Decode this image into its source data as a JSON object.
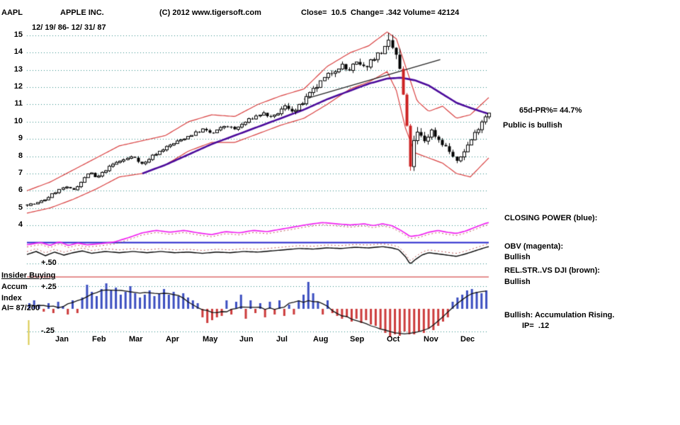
{
  "header": {
    "symbol": "AAPL",
    "company": "APPLE INC.",
    "copyright": "(C) 2012 www.tigersoft.com",
    "stats": "Close=  10.5  Change= .342 Volume= 42124",
    "date_range": "12/ 19/ 86- 12/ 31/ 87"
  },
  "right_panel": {
    "pr": "65d-PR%= 44.7%",
    "public": "Public is bullish",
    "closing_power_label": "CLOSING POWER (blue):",
    "obv_label": "OBV (magenta):",
    "obv_status": "Bullish",
    "relstr_label": "REL.STR..VS DJI (brown):",
    "relstr_status": "Bullish",
    "accum_note": "Bullish: Accumulation Rising.",
    "ip": "IP=  .12"
  },
  "left_labels": {
    "plus50": "+.50",
    "insider": "Insider Buying",
    "accum": "Accum",
    "plus25": "+.25",
    "index": "Index",
    "ai": "AI= 87/200",
    "minus25": "-.25"
  },
  "axis": {
    "price_ticks": [
      15,
      14,
      13,
      12,
      11,
      10,
      9,
      8,
      7,
      6,
      5,
      4
    ],
    "months": [
      "Jan",
      "Feb",
      "Mar",
      "Apr",
      "May",
      "Jun",
      "Jul",
      "Aug",
      "Sep",
      "Oct",
      "Nov",
      "Dec"
    ]
  },
  "chart_data": {
    "type": "candlestick",
    "title": "AAPL daily 12/19/86 - 12/31/87 with trading bands, 65-day MA, OBV, Closing Power, Rel.Str. vs DJI and Accumulation Index",
    "price_axis_range": [
      4,
      15
    ],
    "final_close": 10.5,
    "num_candles": 130,
    "price_anchors": [
      [
        0,
        5.2
      ],
      [
        0.02,
        5.25
      ],
      [
        0.04,
        5.5
      ],
      [
        0.06,
        5.9
      ],
      [
        0.08,
        6.2
      ],
      [
        0.1,
        6.05
      ],
      [
        0.12,
        6.6
      ],
      [
        0.135,
        7.1
      ],
      [
        0.15,
        6.7
      ],
      [
        0.17,
        7.2
      ],
      [
        0.19,
        7.6
      ],
      [
        0.21,
        7.8
      ],
      [
        0.23,
        8.0
      ],
      [
        0.25,
        7.5
      ],
      [
        0.27,
        8.0
      ],
      [
        0.3,
        8.5
      ],
      [
        0.33,
        8.9
      ],
      [
        0.36,
        9.3
      ],
      [
        0.38,
        9.55
      ],
      [
        0.4,
        9.3
      ],
      [
        0.43,
        9.8
      ],
      [
        0.45,
        9.55
      ],
      [
        0.48,
        10.1
      ],
      [
        0.51,
        10.5
      ],
      [
        0.53,
        10.2
      ],
      [
        0.56,
        10.9
      ],
      [
        0.58,
        10.6
      ],
      [
        0.6,
        11.2
      ],
      [
        0.62,
        11.8
      ],
      [
        0.64,
        12.4
      ],
      [
        0.66,
        12.9
      ],
      [
        0.68,
        13.3
      ],
      [
        0.695,
        12.9
      ],
      [
        0.71,
        13.4
      ],
      [
        0.73,
        13.1
      ],
      [
        0.75,
        13.7
      ],
      [
        0.77,
        14.1
      ],
      [
        0.785,
        14.5
      ],
      [
        0.8,
        13.8
      ],
      [
        0.81,
        12.4
      ],
      [
        0.82,
        10.2
      ],
      [
        0.828,
        7.2
      ],
      [
        0.835,
        8.6
      ],
      [
        0.845,
        9.3
      ],
      [
        0.86,
        8.9
      ],
      [
        0.875,
        9.5
      ],
      [
        0.89,
        9.0
      ],
      [
        0.905,
        8.6
      ],
      [
        0.92,
        8.1
      ],
      [
        0.93,
        7.6
      ],
      [
        0.945,
        8.3
      ],
      [
        0.96,
        8.9
      ],
      [
        0.975,
        9.6
      ],
      [
        0.99,
        10.3
      ],
      [
        1,
        10.5
      ]
    ],
    "ma_anchors": [
      [
        0.25,
        7.0
      ],
      [
        0.3,
        7.5
      ],
      [
        0.35,
        8.1
      ],
      [
        0.4,
        8.7
      ],
      [
        0.45,
        9.2
      ],
      [
        0.5,
        9.7
      ],
      [
        0.55,
        10.2
      ],
      [
        0.6,
        10.7
      ],
      [
        0.65,
        11.3
      ],
      [
        0.7,
        11.8
      ],
      [
        0.74,
        12.2
      ],
      [
        0.78,
        12.5
      ],
      [
        0.81,
        12.55
      ],
      [
        0.84,
        12.4
      ],
      [
        0.87,
        12.1
      ],
      [
        0.9,
        11.6
      ],
      [
        0.93,
        11.1
      ],
      [
        0.96,
        10.8
      ],
      [
        1,
        10.45
      ]
    ],
    "upper_band_anchors": [
      [
        0,
        6.0
      ],
      [
        0.05,
        6.5
      ],
      [
        0.1,
        7.2
      ],
      [
        0.15,
        7.9
      ],
      [
        0.2,
        8.6
      ],
      [
        0.25,
        8.9
      ],
      [
        0.3,
        9.2
      ],
      [
        0.35,
        10.0
      ],
      [
        0.4,
        10.4
      ],
      [
        0.45,
        10.3
      ],
      [
        0.5,
        11.0
      ],
      [
        0.55,
        11.5
      ],
      [
        0.6,
        11.9
      ],
      [
        0.65,
        13.2
      ],
      [
        0.7,
        14.0
      ],
      [
        0.74,
        14.4
      ],
      [
        0.78,
        15.2
      ],
      [
        0.8,
        14.8
      ],
      [
        0.82,
        13.2
      ],
      [
        0.845,
        11.2
      ],
      [
        0.87,
        10.6
      ],
      [
        0.9,
        10.9
      ],
      [
        0.93,
        10.2
      ],
      [
        0.96,
        10.4
      ],
      [
        1,
        11.4
      ]
    ],
    "lower_band_anchors": [
      [
        0,
        4.7
      ],
      [
        0.05,
        5.0
      ],
      [
        0.1,
        5.5
      ],
      [
        0.15,
        6.1
      ],
      [
        0.2,
        6.8
      ],
      [
        0.25,
        7.0
      ],
      [
        0.3,
        7.5
      ],
      [
        0.35,
        8.3
      ],
      [
        0.4,
        8.8
      ],
      [
        0.45,
        8.8
      ],
      [
        0.5,
        9.3
      ],
      [
        0.55,
        9.8
      ],
      [
        0.6,
        10.2
      ],
      [
        0.65,
        11.0
      ],
      [
        0.7,
        11.9
      ],
      [
        0.74,
        12.3
      ],
      [
        0.78,
        12.9
      ],
      [
        0.8,
        11.8
      ],
      [
        0.82,
        9.6
      ],
      [
        0.84,
        8.2
      ],
      [
        0.87,
        7.9
      ],
      [
        0.9,
        7.6
      ],
      [
        0.93,
        7.0
      ],
      [
        0.96,
        6.8
      ],
      [
        1,
        7.9
      ]
    ],
    "trendline": [
      [
        0.6,
        11.3
      ],
      [
        0.895,
        13.6
      ]
    ],
    "obv_anchors": [
      [
        0,
        0.58
      ],
      [
        0.03,
        0.62
      ],
      [
        0.05,
        0.57
      ],
      [
        0.07,
        0.63
      ],
      [
        0.09,
        0.57
      ],
      [
        0.11,
        0.61
      ],
      [
        0.13,
        0.58
      ],
      [
        0.16,
        0.6
      ],
      [
        0.19,
        0.63
      ],
      [
        0.22,
        0.7
      ],
      [
        0.25,
        0.78
      ],
      [
        0.28,
        0.82
      ],
      [
        0.31,
        0.79
      ],
      [
        0.34,
        0.82
      ],
      [
        0.37,
        0.78
      ],
      [
        0.4,
        0.75
      ],
      [
        0.43,
        0.8
      ],
      [
        0.46,
        0.78
      ],
      [
        0.49,
        0.82
      ],
      [
        0.52,
        0.8
      ],
      [
        0.55,
        0.84
      ],
      [
        0.58,
        0.88
      ],
      [
        0.61,
        0.92
      ],
      [
        0.64,
        0.95
      ],
      [
        0.67,
        0.93
      ],
      [
        0.7,
        0.91
      ],
      [
        0.73,
        0.93
      ],
      [
        0.75,
        0.9
      ],
      [
        0.77,
        0.93
      ],
      [
        0.79,
        0.9
      ],
      [
        0.81,
        0.82
      ],
      [
        0.83,
        0.72
      ],
      [
        0.85,
        0.74
      ],
      [
        0.87,
        0.79
      ],
      [
        0.89,
        0.82
      ],
      [
        0.91,
        0.79
      ],
      [
        0.93,
        0.77
      ],
      [
        0.95,
        0.81
      ],
      [
        0.97,
        0.87
      ],
      [
        0.99,
        0.93
      ],
      [
        1,
        0.95
      ]
    ],
    "closing_power_level": 0.62,
    "relstr_anchors": [
      [
        0,
        0.42
      ],
      [
        0.02,
        0.47
      ],
      [
        0.04,
        0.4
      ],
      [
        0.06,
        0.46
      ],
      [
        0.08,
        0.41
      ],
      [
        0.1,
        0.45
      ],
      [
        0.12,
        0.48
      ],
      [
        0.14,
        0.44
      ],
      [
        0.17,
        0.47
      ],
      [
        0.2,
        0.45
      ],
      [
        0.23,
        0.47
      ],
      [
        0.26,
        0.45
      ],
      [
        0.29,
        0.47
      ],
      [
        0.32,
        0.45
      ],
      [
        0.35,
        0.46
      ],
      [
        0.38,
        0.44
      ],
      [
        0.41,
        0.46
      ],
      [
        0.44,
        0.45
      ],
      [
        0.47,
        0.47
      ],
      [
        0.5,
        0.46
      ],
      [
        0.53,
        0.48
      ],
      [
        0.56,
        0.5
      ],
      [
        0.59,
        0.52
      ],
      [
        0.62,
        0.51
      ],
      [
        0.65,
        0.53
      ],
      [
        0.68,
        0.52
      ],
      [
        0.71,
        0.54
      ],
      [
        0.74,
        0.53
      ],
      [
        0.77,
        0.55
      ],
      [
        0.79,
        0.53
      ],
      [
        0.805,
        0.5
      ],
      [
        0.82,
        0.38
      ],
      [
        0.83,
        0.26
      ],
      [
        0.84,
        0.33
      ],
      [
        0.855,
        0.41
      ],
      [
        0.87,
        0.45
      ],
      [
        0.89,
        0.43
      ],
      [
        0.91,
        0.41
      ],
      [
        0.93,
        0.39
      ],
      [
        0.95,
        0.43
      ],
      [
        0.97,
        0.48
      ],
      [
        0.99,
        0.53
      ],
      [
        1,
        0.55
      ]
    ],
    "accum_bars": [
      0.2,
      0.3,
      0.15,
      -0.1,
      0.2,
      -0.15,
      0.25,
      0.1,
      -0.2,
      0.3,
      -0.15,
      0.4,
      0.85,
      0.6,
      0.45,
      0.7,
      0.9,
      0.65,
      0.75,
      0.5,
      0.6,
      0.8,
      0.55,
      0.4,
      0.5,
      0.65,
      0.45,
      0.55,
      0.7,
      0.5,
      0.6,
      0.45,
      0.55,
      0.4,
      0.3,
      0.2,
      -0.3,
      -0.5,
      -0.4,
      -0.3,
      -0.25,
      0.3,
      -0.2,
      0.25,
      0.5,
      -0.35,
      0.3,
      -0.15,
      0.2,
      -0.3,
      0.25,
      -0.2,
      0.3,
      -0.25,
      0.15,
      -0.2,
      0.3,
      0.5,
      0.95,
      0.55,
      0.25,
      -0.2,
      0.3,
      -0.15,
      -0.25,
      -0.35,
      -0.3,
      -0.45,
      -0.35,
      -0.5,
      -0.4,
      -0.55,
      -0.6,
      -0.7,
      -0.85,
      -1.0,
      -0.9,
      -0.95,
      -0.8,
      -0.9,
      -0.9,
      -0.8,
      -0.85,
      -0.7,
      -0.75,
      -0.6,
      -0.45,
      -0.3,
      0.25,
      0.4,
      0.5,
      0.65,
      0.7,
      0.6,
      0.55,
      0.65
    ],
    "colors": {
      "grid": "#2e8f86",
      "candle": "#000000",
      "candle_crash": "#cc2222",
      "band": "#d84040",
      "ma": "#4b0b9b",
      "trend": "#222222",
      "obv": "#f020f0",
      "closing_power": "#2424cc",
      "relstr": "#000000",
      "aux_dotted": "#bb5555",
      "level_red": "#cc2222",
      "hist_pos": "#3b4ec0",
      "hist_neg": "#cc3b3b",
      "hist_line": "#111111",
      "axis_mark": "#d8c84a"
    }
  }
}
